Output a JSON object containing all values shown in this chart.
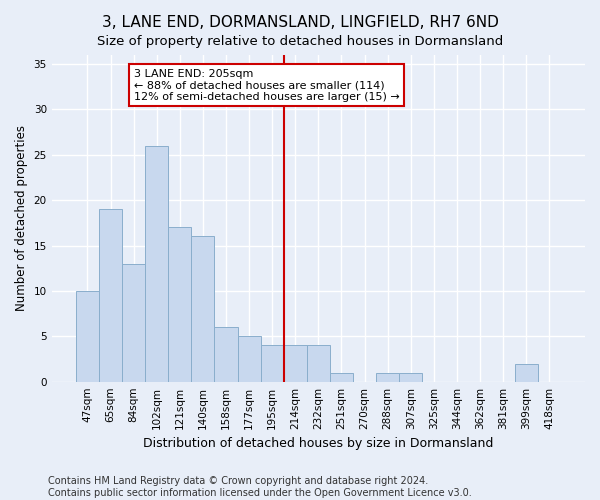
{
  "title": "3, LANE END, DORMANSLAND, LINGFIELD, RH7 6ND",
  "subtitle": "Size of property relative to detached houses in Dormansland",
  "xlabel": "Distribution of detached houses by size in Dormansland",
  "ylabel": "Number of detached properties",
  "categories": [
    "47sqm",
    "65sqm",
    "84sqm",
    "102sqm",
    "121sqm",
    "140sqm",
    "158sqm",
    "177sqm",
    "195sqm",
    "214sqm",
    "232sqm",
    "251sqm",
    "270sqm",
    "288sqm",
    "307sqm",
    "325sqm",
    "344sqm",
    "362sqm",
    "381sqm",
    "399sqm",
    "418sqm"
  ],
  "values": [
    10,
    19,
    13,
    26,
    17,
    16,
    6,
    5,
    4,
    4,
    4,
    1,
    0,
    1,
    1,
    0,
    0,
    0,
    0,
    2,
    0
  ],
  "bar_color": "#c8d8ee",
  "bar_edge_color": "#8aaecc",
  "vline_x_index": 8.5,
  "vline_color": "#cc0000",
  "annotation_text": "3 LANE END: 205sqm\n← 88% of detached houses are smaller (114)\n12% of semi-detached houses are larger (15) →",
  "annotation_box_color": "#ffffff",
  "annotation_box_edge_color": "#cc0000",
  "ylim": [
    0,
    36
  ],
  "yticks": [
    0,
    5,
    10,
    15,
    20,
    25,
    30,
    35
  ],
  "footer_line1": "Contains HM Land Registry data © Crown copyright and database right 2024.",
  "footer_line2": "Contains public sector information licensed under the Open Government Licence v3.0.",
  "bg_color": "#e8eef8",
  "plot_bg_color": "#e8eef8",
  "grid_color": "#ffffff",
  "title_fontsize": 11,
  "subtitle_fontsize": 9.5,
  "xlabel_fontsize": 9,
  "ylabel_fontsize": 8.5,
  "tick_fontsize": 7.5,
  "footer_fontsize": 7,
  "annotation_fontsize": 8
}
